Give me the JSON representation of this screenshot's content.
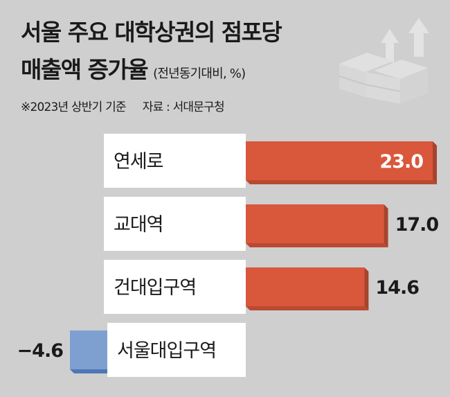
{
  "header": {
    "title_line1": "서울 주요 대학상권의 점포당",
    "title_line2": "매출액 증가율",
    "unit": "(전년동기대비, %)",
    "note": "※2023년 상반기 기준",
    "source": "자료 : 서대문구청"
  },
  "icon": "box-stack-growth-icon",
  "colors": {
    "background": "#cfcfcf",
    "label_box": "#ffffff",
    "positive_bar": "#d9573b",
    "negative_bar": "#7ea0d1"
  },
  "chart_data": {
    "type": "bar",
    "orientation": "horizontal",
    "title": "서울 주요 대학상권의 점포당 매출액 증가율",
    "ylabel": "(전년동기대비, %)",
    "categories": [
      "연세로",
      "교대역",
      "건대입구역",
      "서울대입구역"
    ],
    "values": [
      23.0,
      17.0,
      14.6,
      -4.6
    ],
    "value_labels": [
      "23.0",
      "17.0",
      "14.6",
      "−4.6"
    ],
    "xlim": [
      -4.6,
      23.0
    ],
    "grid": false,
    "legend": "none"
  }
}
